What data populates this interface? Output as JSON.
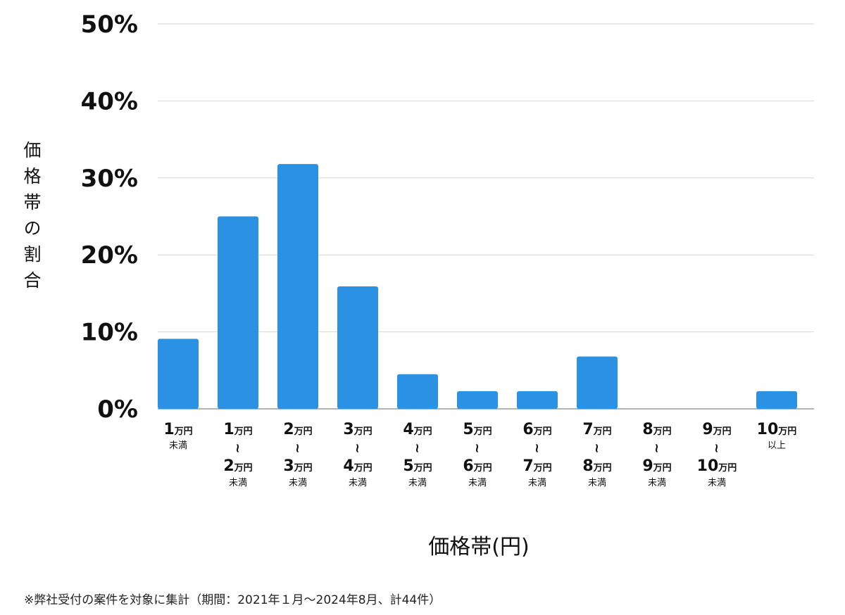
{
  "chart_data": {
    "type": "bar",
    "ylabel": "価格帯の割合",
    "xlabel": "価格帯(円)",
    "ylim": [
      0,
      50
    ],
    "yticks": [
      "0%",
      "10%",
      "20%",
      "30%",
      "40%",
      "50%"
    ],
    "ytick_values": [
      0,
      10,
      20,
      30,
      40,
      50
    ],
    "grid": true,
    "color": "#2B91E3",
    "categories": [
      {
        "top": "1",
        "top_unit": "万円",
        "sub": "未満"
      },
      {
        "top": "1",
        "top_unit": "万円",
        "tilde": "~",
        "bottom": "2",
        "bottom_unit": "万円",
        "sub": "未満"
      },
      {
        "top": "2",
        "top_unit": "万円",
        "tilde": "~",
        "bottom": "3",
        "bottom_unit": "万円",
        "sub": "未満"
      },
      {
        "top": "3",
        "top_unit": "万円",
        "tilde": "~",
        "bottom": "4",
        "bottom_unit": "万円",
        "sub": "未満"
      },
      {
        "top": "4",
        "top_unit": "万円",
        "tilde": "~",
        "bottom": "5",
        "bottom_unit": "万円",
        "sub": "未満"
      },
      {
        "top": "5",
        "top_unit": "万円",
        "tilde": "~",
        "bottom": "6",
        "bottom_unit": "万円",
        "sub": "未満"
      },
      {
        "top": "6",
        "top_unit": "万円",
        "tilde": "~",
        "bottom": "7",
        "bottom_unit": "万円",
        "sub": "未満"
      },
      {
        "top": "7",
        "top_unit": "万円",
        "tilde": "~",
        "bottom": "8",
        "bottom_unit": "万円",
        "sub": "未満"
      },
      {
        "top": "8",
        "top_unit": "万円",
        "tilde": "~",
        "bottom": "9",
        "bottom_unit": "万円",
        "sub": "未満"
      },
      {
        "top": "9",
        "top_unit": "万円",
        "tilde": "~",
        "bottom": "10",
        "bottom_unit": "万円",
        "sub": "未満"
      },
      {
        "top": "10",
        "top_unit": "万円",
        "sub": "以上"
      }
    ],
    "values": [
      9.1,
      25.0,
      31.8,
      15.9,
      4.5,
      2.3,
      2.3,
      6.8,
      0,
      0,
      2.3
    ]
  },
  "footnote": "※弊社受付の案件を対象に集計（期間：2021年１月～2024年8月、計44件）"
}
